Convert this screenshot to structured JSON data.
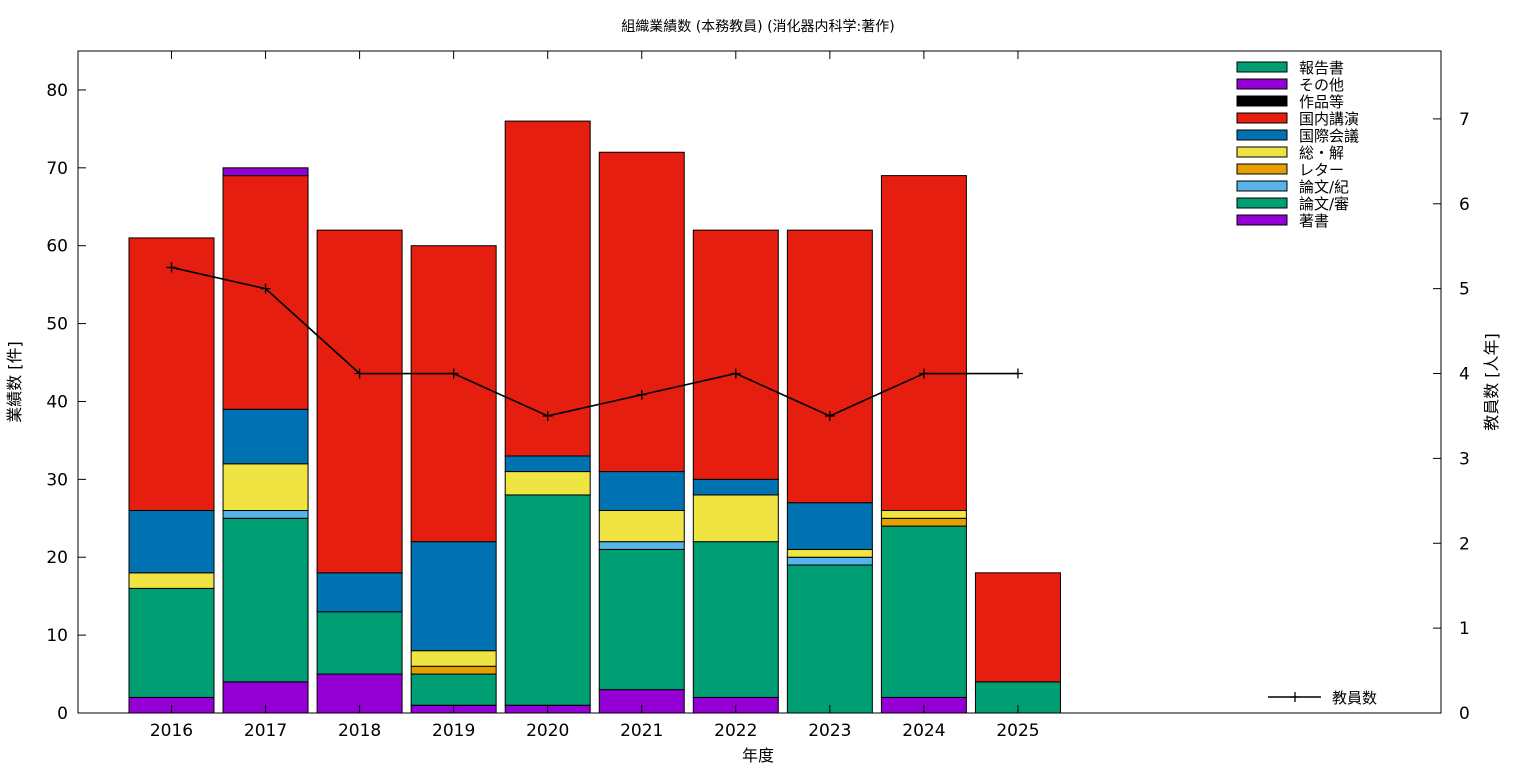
{
  "chart_data": {
    "type": "bar",
    "stacked": true,
    "title": "組織業績数 (本務教員) (消化器内科学:著作)",
    "xlabel": "年度",
    "ylabel": "業績数 [件]",
    "y2label": "教員数 [人年]",
    "ylim": [
      0,
      85
    ],
    "y2lim": [
      0,
      7.8
    ],
    "yticks": [
      "0",
      "10",
      "20",
      "30",
      "40",
      "50",
      "60",
      "70",
      "80"
    ],
    "y2ticks": [
      "0",
      "1",
      "2",
      "3",
      "4",
      "5",
      "6",
      "7"
    ],
    "categories": [
      "2016",
      "2017",
      "2018",
      "2019",
      "2020",
      "2021",
      "2022",
      "2023",
      "2024",
      "2025"
    ],
    "grid": false,
    "legend_position": "top-right",
    "series": [
      {
        "name": "著書",
        "color": "#9400d3",
        "values": [
          2,
          4,
          5,
          1,
          1,
          3,
          2,
          0,
          2,
          0
        ]
      },
      {
        "name": "論文/審",
        "color": "#009e73",
        "values": [
          14,
          21,
          8,
          4,
          27,
          18,
          20,
          19,
          22,
          4
        ]
      },
      {
        "name": "論文/紀",
        "color": "#56b4e9",
        "values": [
          0,
          1,
          0,
          0,
          0,
          1,
          0,
          1,
          0,
          0
        ]
      },
      {
        "name": "レター",
        "color": "#e69f00",
        "values": [
          0,
          0,
          0,
          1,
          0,
          0,
          0,
          0,
          1,
          0
        ]
      },
      {
        "name": "総・解",
        "color": "#f0e442",
        "values": [
          2,
          6,
          0,
          2,
          3,
          4,
          6,
          1,
          1,
          0
        ]
      },
      {
        "name": "国際会議",
        "color": "#0072b2",
        "values": [
          8,
          7,
          5,
          14,
          2,
          5,
          2,
          6,
          0,
          0
        ]
      },
      {
        "name": "国内講演",
        "color": "#e51e10",
        "values": [
          35,
          30,
          44,
          38,
          43,
          41,
          32,
          35,
          43,
          14
        ]
      },
      {
        "name": "作品等",
        "color": "#000000",
        "values": [
          0,
          0,
          0,
          0,
          0,
          0,
          0,
          0,
          0,
          0
        ]
      },
      {
        "name": "その他",
        "color": "#9400d3",
        "values": [
          0,
          1,
          0,
          0,
          0,
          0,
          0,
          0,
          0,
          0
        ]
      },
      {
        "name": "報告書",
        "color": "#009e73",
        "values": [
          0,
          0,
          0,
          0,
          0,
          0,
          0,
          0,
          0,
          0
        ]
      }
    ],
    "line_series": {
      "name": "教員数",
      "axis": "right",
      "color": "#000000",
      "values": [
        5.25,
        5.0,
        4.0,
        4.0,
        3.5,
        3.75,
        4.0,
        3.5,
        4.0,
        4.0
      ]
    }
  }
}
